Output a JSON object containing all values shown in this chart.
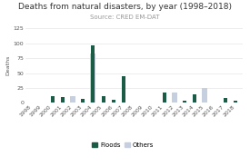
{
  "title": "Deaths from natural disasters, by year (1998–2018)",
  "subtitle": "Source: CRED EM-DAT",
  "years": [
    1998,
    1999,
    2000,
    2001,
    2002,
    2003,
    2004,
    2005,
    2006,
    2007,
    2008,
    2009,
    2010,
    2011,
    2012,
    2013,
    2014,
    2015,
    2016,
    2017,
    2018
  ],
  "floods": [
    0,
    1,
    11,
    10,
    0,
    7,
    96,
    12,
    5,
    45,
    0,
    0,
    0,
    17,
    0,
    4,
    15,
    0,
    0,
    9,
    3
  ],
  "others": [
    0,
    0,
    0,
    0,
    11,
    0,
    82,
    0,
    0,
    0,
    0,
    0,
    0,
    0,
    17,
    0,
    0,
    25,
    0,
    0,
    0
  ],
  "flood_color": "#1a5c45",
  "others_color": "#c5cfe0",
  "bg_color": "#ffffff",
  "grid_color": "#e6e6e6",
  "text_color": "#555555",
  "ylabel": "Deaths",
  "ylim": [
    0,
    125
  ],
  "yticks": [
    0,
    25,
    50,
    75,
    100,
    125
  ],
  "title_fontsize": 6.5,
  "subtitle_fontsize": 5.0,
  "axis_fontsize": 4.5,
  "legend_fontsize": 5.0
}
